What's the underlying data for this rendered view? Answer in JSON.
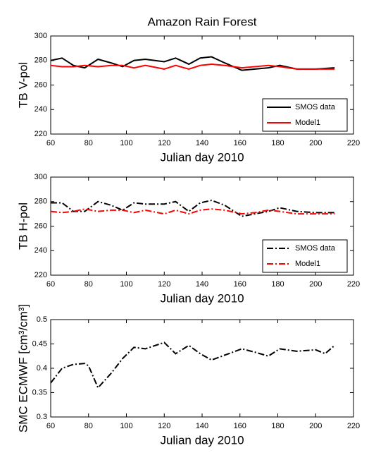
{
  "chart_data": [
    {
      "type": "line",
      "title": "Amazon Rain Forest",
      "xlabel": "Julian day 2010",
      "ylabel": "TB V-pol",
      "x": [
        60,
        66,
        72,
        78,
        85,
        92,
        98,
        104,
        110,
        120,
        126,
        133,
        139,
        145,
        152,
        161,
        168,
        175,
        181,
        190,
        200,
        210
      ],
      "series": [
        {
          "name": "SMOS data",
          "color": "#000000",
          "linestyle": "solid",
          "values": [
            280,
            282,
            276,
            274,
            281,
            278,
            275,
            280,
            281,
            279,
            282,
            277,
            282,
            283,
            278,
            272,
            273,
            274,
            276,
            273,
            273,
            274
          ]
        },
        {
          "name": "Model1",
          "color": "#ff0000",
          "linestyle": "solid",
          "values": [
            276,
            275,
            275,
            276,
            275,
            276,
            276,
            274,
            276,
            273,
            276,
            273,
            276,
            277,
            276,
            274,
            275,
            276,
            275,
            273,
            273,
            273
          ]
        }
      ],
      "xlim": [
        60,
        220
      ],
      "xticks": [
        60,
        80,
        100,
        120,
        140,
        160,
        180,
        200,
        220
      ],
      "ylim": [
        220,
        300
      ],
      "yticks": [
        220,
        240,
        260,
        280,
        300
      ],
      "legend": "lower right"
    },
    {
      "type": "line",
      "xlabel": "Julian day 2010",
      "ylabel": "TB H-pol",
      "x": [
        60,
        66,
        72,
        78,
        85,
        92,
        98,
        104,
        110,
        120,
        126,
        133,
        139,
        145,
        152,
        161,
        168,
        175,
        181,
        190,
        200,
        210
      ],
      "series": [
        {
          "name": "SMOS data",
          "color": "#000000",
          "linestyle": "dashdot",
          "values": [
            279,
            279,
            272,
            272,
            280,
            277,
            273,
            279,
            278,
            278,
            280,
            272,
            279,
            281,
            277,
            268,
            270,
            272,
            275,
            272,
            271,
            271
          ]
        },
        {
          "name": "Model1",
          "color": "#ff0000",
          "linestyle": "dashdot",
          "values": [
            272,
            271,
            272,
            274,
            272,
            273,
            273,
            271,
            273,
            270,
            273,
            270,
            273,
            274,
            273,
            270,
            271,
            273,
            272,
            270,
            270,
            270
          ]
        }
      ],
      "xlim": [
        60,
        220
      ],
      "xticks": [
        60,
        80,
        100,
        120,
        140,
        160,
        180,
        200,
        220
      ],
      "ylim": [
        220,
        300
      ],
      "yticks": [
        220,
        240,
        260,
        280,
        300
      ],
      "legend": "lower right"
    },
    {
      "type": "line",
      "xlabel": "Julian day 2010",
      "ylabel": "SMC ECMWF [cm³/cm³]",
      "x": [
        60,
        66,
        72,
        78,
        80,
        85,
        92,
        98,
        104,
        110,
        120,
        126,
        133,
        139,
        145,
        152,
        161,
        168,
        175,
        181,
        190,
        200,
        205,
        210
      ],
      "series": [
        {
          "color": "#000000",
          "linestyle": "dashdot",
          "values": [
            0.37,
            0.4,
            0.408,
            0.41,
            0.405,
            0.36,
            0.39,
            0.42,
            0.443,
            0.44,
            0.453,
            0.43,
            0.447,
            0.43,
            0.417,
            0.427,
            0.44,
            0.433,
            0.425,
            0.44,
            0.435,
            0.438,
            0.43,
            0.447
          ]
        }
      ],
      "xlim": [
        60,
        220
      ],
      "xticks": [
        60,
        80,
        100,
        120,
        140,
        160,
        180,
        200,
        220
      ],
      "ylim": [
        0.3,
        0.5
      ],
      "yticks": [
        0.3,
        0.35,
        0.4,
        0.45,
        0.5
      ]
    }
  ]
}
